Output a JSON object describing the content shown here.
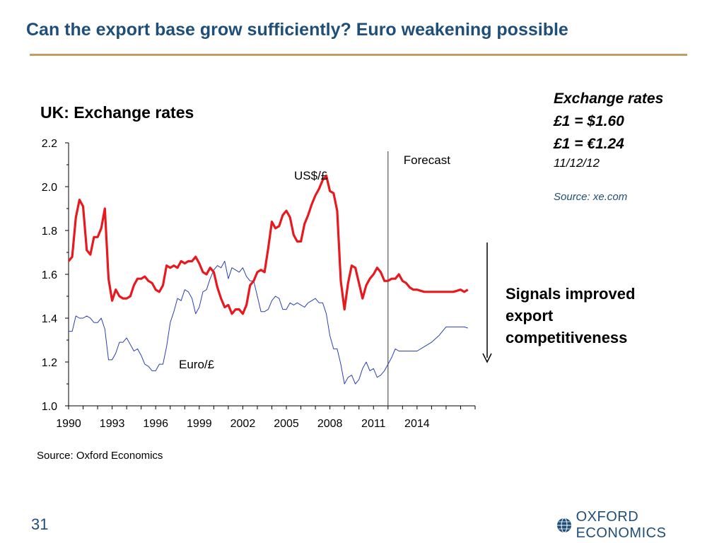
{
  "slide": {
    "title": "Can the export base grow sufficiently?  Euro weakening possible",
    "page_number": "31",
    "source_bottom": "Source: Oxford Economics",
    "logo_text": "OXFORD ECONOMICS"
  },
  "info": {
    "heading": "Exchange rates",
    "usd_rate": "£1 = $1.60",
    "eur_rate": "£1 = €1.24",
    "date": "11/12/12",
    "source": "Source: xe.com"
  },
  "signals": {
    "line1": "Signals improved",
    "line2": "export",
    "line3": "competitiveness"
  },
  "colors": {
    "title": "#1f4e79",
    "rule": "#c0a062",
    "usd_series": "#e8191e",
    "eur_series": "#2b3fb5"
  },
  "chart_data": {
    "type": "line",
    "title": "UK: Exchange rates",
    "xlabel": "",
    "ylabel": "",
    "ylim": [
      1.0,
      2.2
    ],
    "yticks": [
      "1.0",
      "1.2",
      "1.4",
      "1.6",
      "1.8",
      "2.0",
      "2.2"
    ],
    "xlim": [
      1990,
      2018
    ],
    "xticks": [
      "1990",
      "1993",
      "1996",
      "1999",
      "2002",
      "2005",
      "2008",
      "2011",
      "2014"
    ],
    "forecast_start": 2012,
    "forecast_label": "Forecast",
    "grid": false,
    "series": [
      {
        "name": "US$/£",
        "values": [
          [
            1990.0,
            1.66
          ],
          [
            1990.25,
            1.68
          ],
          [
            1990.5,
            1.86
          ],
          [
            1990.75,
            1.94
          ],
          [
            1991.0,
            1.91
          ],
          [
            1991.25,
            1.71
          ],
          [
            1991.5,
            1.69
          ],
          [
            1991.75,
            1.77
          ],
          [
            1992.0,
            1.77
          ],
          [
            1992.25,
            1.81
          ],
          [
            1992.5,
            1.9
          ],
          [
            1992.75,
            1.58
          ],
          [
            1993.0,
            1.48
          ],
          [
            1993.25,
            1.53
          ],
          [
            1993.5,
            1.5
          ],
          [
            1993.75,
            1.49
          ],
          [
            1994.0,
            1.49
          ],
          [
            1994.25,
            1.5
          ],
          [
            1994.5,
            1.55
          ],
          [
            1994.75,
            1.58
          ],
          [
            1995.0,
            1.58
          ],
          [
            1995.25,
            1.59
          ],
          [
            1995.5,
            1.57
          ],
          [
            1995.75,
            1.56
          ],
          [
            1996.0,
            1.53
          ],
          [
            1996.25,
            1.52
          ],
          [
            1996.5,
            1.55
          ],
          [
            1996.75,
            1.64
          ],
          [
            1997.0,
            1.63
          ],
          [
            1997.25,
            1.64
          ],
          [
            1997.5,
            1.63
          ],
          [
            1997.75,
            1.66
          ],
          [
            1998.0,
            1.65
          ],
          [
            1998.25,
            1.66
          ],
          [
            1998.5,
            1.66
          ],
          [
            1998.75,
            1.68
          ],
          [
            1999.0,
            1.65
          ],
          [
            1999.25,
            1.61
          ],
          [
            1999.5,
            1.6
          ],
          [
            1999.75,
            1.63
          ],
          [
            2000.0,
            1.61
          ],
          [
            2000.25,
            1.54
          ],
          [
            2000.5,
            1.49
          ],
          [
            2000.75,
            1.45
          ],
          [
            2001.0,
            1.46
          ],
          [
            2001.25,
            1.42
          ],
          [
            2001.5,
            1.44
          ],
          [
            2001.75,
            1.44
          ],
          [
            2002.0,
            1.42
          ],
          [
            2002.25,
            1.46
          ],
          [
            2002.5,
            1.55
          ],
          [
            2002.75,
            1.57
          ],
          [
            2003.0,
            1.61
          ],
          [
            2003.25,
            1.62
          ],
          [
            2003.5,
            1.61
          ],
          [
            2003.75,
            1.72
          ],
          [
            2004.0,
            1.84
          ],
          [
            2004.25,
            1.81
          ],
          [
            2004.5,
            1.82
          ],
          [
            2004.75,
            1.87
          ],
          [
            2005.0,
            1.89
          ],
          [
            2005.25,
            1.86
          ],
          [
            2005.5,
            1.78
          ],
          [
            2005.75,
            1.75
          ],
          [
            2006.0,
            1.75
          ],
          [
            2006.25,
            1.83
          ],
          [
            2006.5,
            1.87
          ],
          [
            2006.75,
            1.92
          ],
          [
            2007.0,
            1.96
          ],
          [
            2007.25,
            1.99
          ],
          [
            2007.5,
            2.03
          ],
          [
            2007.75,
            2.05
          ],
          [
            2008.0,
            1.98
          ],
          [
            2008.25,
            1.97
          ],
          [
            2008.5,
            1.89
          ],
          [
            2008.75,
            1.57
          ],
          [
            2009.0,
            1.44
          ],
          [
            2009.25,
            1.56
          ],
          [
            2009.5,
            1.64
          ],
          [
            2009.75,
            1.63
          ],
          [
            2010.0,
            1.56
          ],
          [
            2010.25,
            1.49
          ],
          [
            2010.5,
            1.55
          ],
          [
            2010.75,
            1.58
          ],
          [
            2011.0,
            1.6
          ],
          [
            2011.25,
            1.63
          ],
          [
            2011.5,
            1.61
          ],
          [
            2011.75,
            1.57
          ],
          [
            2012.0,
            1.57
          ],
          [
            2012.25,
            1.58
          ],
          [
            2012.5,
            1.58
          ],
          [
            2012.75,
            1.6
          ],
          [
            2013.0,
            1.57
          ],
          [
            2013.25,
            1.56
          ],
          [
            2013.5,
            1.54
          ],
          [
            2013.75,
            1.53
          ],
          [
            2014.0,
            1.53
          ],
          [
            2014.5,
            1.52
          ],
          [
            2015.0,
            1.52
          ],
          [
            2015.5,
            1.52
          ],
          [
            2016.0,
            1.52
          ],
          [
            2016.5,
            1.52
          ],
          [
            2017.0,
            1.53
          ],
          [
            2017.25,
            1.52
          ],
          [
            2017.5,
            1.53
          ]
        ]
      },
      {
        "name": "Euro/£",
        "values": [
          [
            1990.0,
            1.34
          ],
          [
            1990.25,
            1.34
          ],
          [
            1990.5,
            1.41
          ],
          [
            1990.75,
            1.4
          ],
          [
            1991.0,
            1.4
          ],
          [
            1991.25,
            1.41
          ],
          [
            1991.5,
            1.4
          ],
          [
            1991.75,
            1.38
          ],
          [
            1992.0,
            1.38
          ],
          [
            1992.25,
            1.4
          ],
          [
            1992.5,
            1.35
          ],
          [
            1992.75,
            1.21
          ],
          [
            1993.0,
            1.21
          ],
          [
            1993.25,
            1.24
          ],
          [
            1993.5,
            1.29
          ],
          [
            1993.75,
            1.29
          ],
          [
            1994.0,
            1.31
          ],
          [
            1994.25,
            1.28
          ],
          [
            1994.5,
            1.25
          ],
          [
            1994.75,
            1.26
          ],
          [
            1995.0,
            1.23
          ],
          [
            1995.25,
            1.19
          ],
          [
            1995.5,
            1.18
          ],
          [
            1995.75,
            1.16
          ],
          [
            1996.0,
            1.16
          ],
          [
            1996.25,
            1.19
          ],
          [
            1996.5,
            1.19
          ],
          [
            1996.75,
            1.27
          ],
          [
            1997.0,
            1.38
          ],
          [
            1997.25,
            1.43
          ],
          [
            1997.5,
            1.49
          ],
          [
            1997.75,
            1.48
          ],
          [
            1998.0,
            1.53
          ],
          [
            1998.25,
            1.52
          ],
          [
            1998.5,
            1.49
          ],
          [
            1998.75,
            1.42
          ],
          [
            1999.0,
            1.45
          ],
          [
            1999.25,
            1.52
          ],
          [
            1999.5,
            1.53
          ],
          [
            1999.75,
            1.58
          ],
          [
            2000.0,
            1.62
          ],
          [
            2000.25,
            1.64
          ],
          [
            2000.5,
            1.63
          ],
          [
            2000.75,
            1.66
          ],
          [
            2001.0,
            1.58
          ],
          [
            2001.25,
            1.63
          ],
          [
            2001.5,
            1.62
          ],
          [
            2001.75,
            1.61
          ],
          [
            2002.0,
            1.63
          ],
          [
            2002.25,
            1.59
          ],
          [
            2002.5,
            1.57
          ],
          [
            2002.75,
            1.57
          ],
          [
            2003.0,
            1.5
          ],
          [
            2003.25,
            1.43
          ],
          [
            2003.5,
            1.43
          ],
          [
            2003.75,
            1.44
          ],
          [
            2004.0,
            1.48
          ],
          [
            2004.25,
            1.5
          ],
          [
            2004.5,
            1.49
          ],
          [
            2004.75,
            1.44
          ],
          [
            2005.0,
            1.44
          ],
          [
            2005.25,
            1.47
          ],
          [
            2005.5,
            1.46
          ],
          [
            2005.75,
            1.47
          ],
          [
            2006.0,
            1.46
          ],
          [
            2006.25,
            1.45
          ],
          [
            2006.5,
            1.47
          ],
          [
            2006.75,
            1.48
          ],
          [
            2007.0,
            1.49
          ],
          [
            2007.25,
            1.47
          ],
          [
            2007.5,
            1.47
          ],
          [
            2007.75,
            1.42
          ],
          [
            2008.0,
            1.32
          ],
          [
            2008.25,
            1.26
          ],
          [
            2008.5,
            1.26
          ],
          [
            2008.75,
            1.19
          ],
          [
            2009.0,
            1.1
          ],
          [
            2009.25,
            1.13
          ],
          [
            2009.5,
            1.14
          ],
          [
            2009.75,
            1.1
          ],
          [
            2010.0,
            1.12
          ],
          [
            2010.25,
            1.17
          ],
          [
            2010.5,
            1.2
          ],
          [
            2010.75,
            1.16
          ],
          [
            2011.0,
            1.17
          ],
          [
            2011.25,
            1.13
          ],
          [
            2011.5,
            1.14
          ],
          [
            2011.75,
            1.16
          ],
          [
            2012.0,
            1.19
          ],
          [
            2012.25,
            1.22
          ],
          [
            2012.5,
            1.26
          ],
          [
            2012.75,
            1.25
          ],
          [
            2013.0,
            1.25
          ],
          [
            2013.5,
            1.25
          ],
          [
            2014.0,
            1.25
          ],
          [
            2014.5,
            1.27
          ],
          [
            2015.0,
            1.29
          ],
          [
            2015.5,
            1.32
          ],
          [
            2016.0,
            1.36
          ],
          [
            2016.5,
            1.36
          ],
          [
            2017.0,
            1.36
          ],
          [
            2017.25,
            1.36
          ],
          [
            2017.5,
            1.355
          ]
        ]
      }
    ]
  }
}
